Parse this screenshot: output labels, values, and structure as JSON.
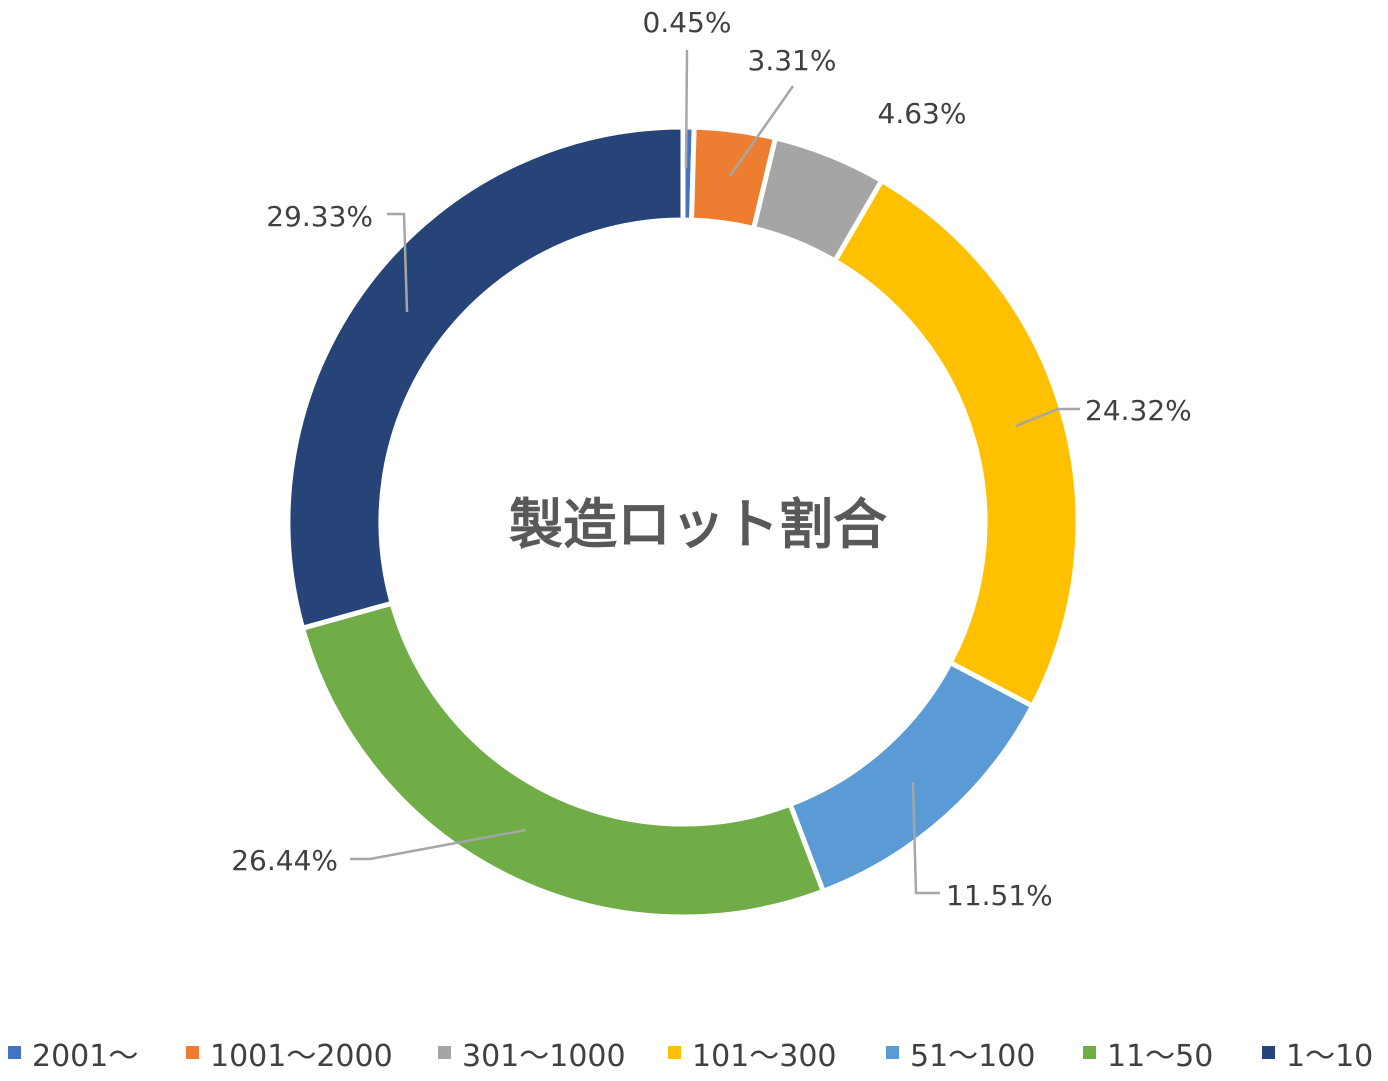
{
  "chart_data": {
    "type": "pie",
    "subtype": "donut",
    "center_label": "製造ロット割合",
    "legend_position": "bottom",
    "categories": [
      "2001〜",
      "1001〜2000",
      "301〜1000",
      "101〜300",
      "51〜100",
      "11〜50",
      "1〜10"
    ],
    "values": [
      0.45,
      3.31,
      4.63,
      24.32,
      11.51,
      26.44,
      29.33
    ],
    "labels": [
      "0.45%",
      "3.31%",
      "4.63%",
      "24.32%",
      "11.51%",
      "26.44%",
      "29.33%"
    ],
    "colors": [
      "#4472c4",
      "#ed7d31",
      "#a5a5a5",
      "#ffc000",
      "#5b9bd5",
      "#70ad47",
      "#264478"
    ]
  }
}
